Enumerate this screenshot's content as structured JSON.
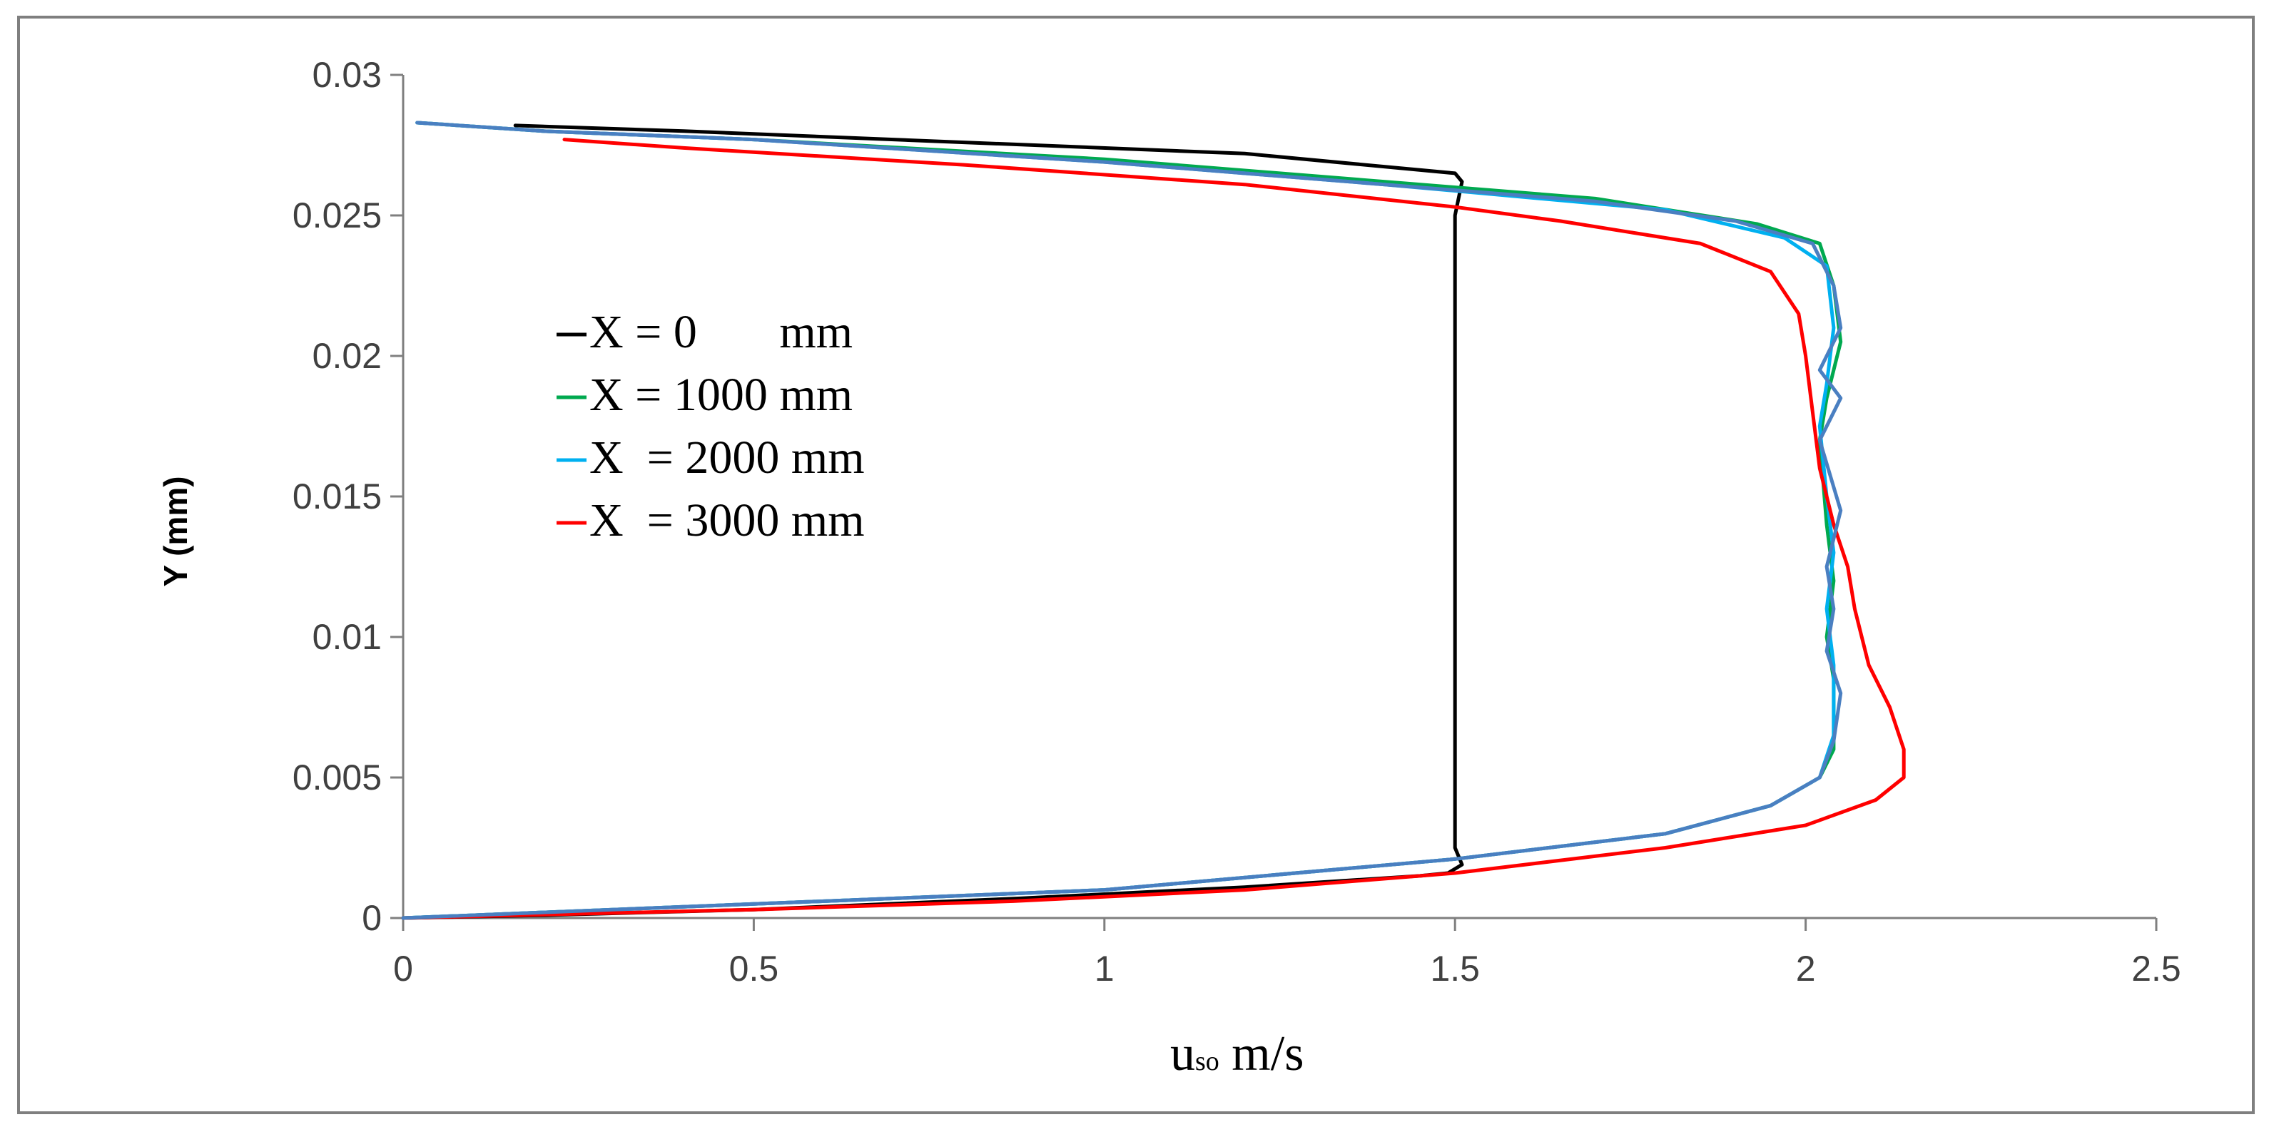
{
  "chart_data": {
    "type": "line",
    "title": "",
    "xlabel": "u",
    "xlabel_sub": "so",
    "xlabel_unit": " m/s",
    "ylabel": "Y (mm)",
    "xlim": [
      0,
      2.5
    ],
    "ylim": [
      0,
      0.03
    ],
    "x_ticks": [
      "0",
      "0.5",
      "1",
      "1.5",
      "2",
      "2.5"
    ],
    "y_ticks": [
      "0",
      "0.005",
      "0.01",
      "0.015",
      "0.02",
      "0.025",
      "0.03"
    ],
    "grid": false,
    "legend_position": "center-left",
    "series": [
      {
        "name": "X = 0       mm",
        "color": "#000000",
        "points": [
          [
            0.0,
            0.0
          ],
          [
            0.2,
            0.0001
          ],
          [
            0.5,
            0.0003
          ],
          [
            0.88,
            0.0007
          ],
          [
            1.2,
            0.0011
          ],
          [
            1.45,
            0.0015
          ],
          [
            1.49,
            0.0016
          ],
          [
            1.51,
            0.0019
          ],
          [
            1.5,
            0.0025
          ],
          [
            1.5,
            0.005
          ],
          [
            1.5,
            0.01
          ],
          [
            1.5,
            0.015
          ],
          [
            1.5,
            0.02
          ],
          [
            1.5,
            0.025
          ],
          [
            1.51,
            0.0262
          ],
          [
            1.5,
            0.0265
          ],
          [
            1.2,
            0.0272
          ],
          [
            0.8,
            0.0276
          ],
          [
            0.4,
            0.028
          ],
          [
            0.16,
            0.0282
          ]
        ]
      },
      {
        "name": "X = 1000 mm",
        "color": "#00a94f",
        "points": [
          [
            0.0,
            0.0
          ],
          [
            0.5,
            0.0005
          ],
          [
            1.0,
            0.001
          ],
          [
            1.5,
            0.0021
          ],
          [
            1.8,
            0.003
          ],
          [
            1.95,
            0.004
          ],
          [
            2.02,
            0.005
          ],
          [
            2.04,
            0.006
          ],
          [
            2.04,
            0.0085
          ],
          [
            2.03,
            0.01
          ],
          [
            2.04,
            0.012
          ],
          [
            2.03,
            0.014
          ],
          [
            2.02,
            0.017
          ],
          [
            2.03,
            0.0185
          ],
          [
            2.05,
            0.0205
          ],
          [
            2.04,
            0.0225
          ],
          [
            2.02,
            0.024
          ],
          [
            1.93,
            0.0247
          ],
          [
            1.7,
            0.0256
          ],
          [
            1.4,
            0.0262
          ],
          [
            1.0,
            0.027
          ],
          [
            0.5,
            0.0277
          ],
          [
            0.2,
            0.028
          ],
          [
            0.02,
            0.0283
          ]
        ]
      },
      {
        "name": "X  = 2000 mm",
        "color": "#00b0f0",
        "points": [
          [
            0.0,
            0.0
          ],
          [
            0.5,
            0.0005
          ],
          [
            1.0,
            0.001
          ],
          [
            1.5,
            0.0021
          ],
          [
            1.8,
            0.003
          ],
          [
            1.95,
            0.004
          ],
          [
            2.02,
            0.005
          ],
          [
            2.04,
            0.0065
          ],
          [
            2.04,
            0.009
          ],
          [
            2.03,
            0.011
          ],
          [
            2.04,
            0.013
          ],
          [
            2.03,
            0.015
          ],
          [
            2.02,
            0.0175
          ],
          [
            2.03,
            0.019
          ],
          [
            2.04,
            0.021
          ],
          [
            2.03,
            0.0232
          ],
          [
            1.97,
            0.0242
          ],
          [
            1.8,
            0.0252
          ],
          [
            1.4,
            0.0261
          ],
          [
            1.0,
            0.0269
          ],
          [
            0.5,
            0.0277
          ],
          [
            0.2,
            0.028
          ],
          [
            0.02,
            0.0283
          ]
        ]
      },
      {
        "name": "X  = 3000 mm",
        "color": "#ff0000",
        "points": [
          [
            0.0,
            0.0
          ],
          [
            0.5,
            0.0003
          ],
          [
            0.87,
            0.0006
          ],
          [
            1.2,
            0.001
          ],
          [
            1.5,
            0.0016
          ],
          [
            1.8,
            0.0025
          ],
          [
            2.0,
            0.0033
          ],
          [
            2.1,
            0.0042
          ],
          [
            2.14,
            0.005
          ],
          [
            2.14,
            0.006
          ],
          [
            2.12,
            0.0075
          ],
          [
            2.09,
            0.009
          ],
          [
            2.07,
            0.011
          ],
          [
            2.06,
            0.0125
          ],
          [
            2.04,
            0.014
          ],
          [
            2.02,
            0.016
          ],
          [
            2.01,
            0.018
          ],
          [
            2.0,
            0.02
          ],
          [
            1.99,
            0.0215
          ],
          [
            1.95,
            0.023
          ],
          [
            1.85,
            0.024
          ],
          [
            1.65,
            0.0248
          ],
          [
            1.5,
            0.0253
          ],
          [
            1.2,
            0.0261
          ],
          [
            0.8,
            0.0268
          ],
          [
            0.4,
            0.0274
          ],
          [
            0.23,
            0.0277
          ]
        ]
      },
      {
        "name": "",
        "color": "#4a7fc1",
        "points": [
          [
            0.0,
            0.0
          ],
          [
            0.5,
            0.0005
          ],
          [
            1.0,
            0.001
          ],
          [
            1.5,
            0.0021
          ],
          [
            1.8,
            0.003
          ],
          [
            1.95,
            0.004
          ],
          [
            2.02,
            0.005
          ],
          [
            2.04,
            0.0063
          ],
          [
            2.05,
            0.008
          ],
          [
            2.03,
            0.0095
          ],
          [
            2.04,
            0.011
          ],
          [
            2.03,
            0.0125
          ],
          [
            2.05,
            0.0145
          ],
          [
            2.02,
            0.017
          ],
          [
            2.05,
            0.0185
          ],
          [
            2.02,
            0.0195
          ],
          [
            2.05,
            0.021
          ],
          [
            2.04,
            0.0225
          ],
          [
            2.01,
            0.024
          ],
          [
            1.9,
            0.0248
          ],
          [
            1.7,
            0.0255
          ],
          [
            1.4,
            0.0261
          ],
          [
            1.0,
            0.0269
          ],
          [
            0.5,
            0.0277
          ],
          [
            0.2,
            0.028
          ],
          [
            0.02,
            0.0283
          ]
        ]
      }
    ]
  }
}
